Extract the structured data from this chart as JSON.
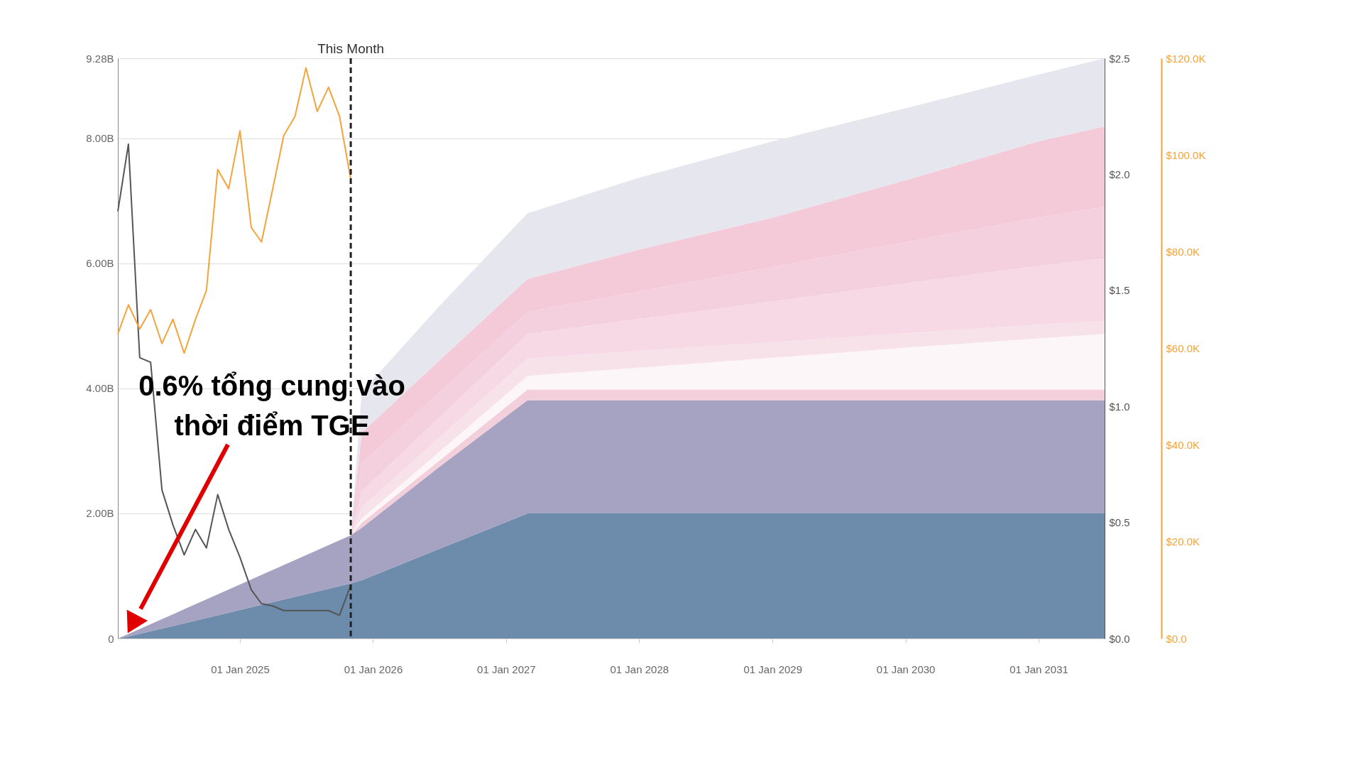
{
  "chart_data": {
    "type": "area",
    "stacked": true,
    "grid": "y",
    "legend": false,
    "marker": "none",
    "x": [
      "2024-02",
      "2024-03",
      "2025-11",
      "2025-12",
      "2026-07",
      "2027-03",
      "2028-01",
      "2029-01",
      "2030-01",
      "2031-01",
      "2031-07"
    ],
    "series": [
      {
        "color": "#6d8bab",
        "values": [
          0,
          0.03,
          0.88,
          0.93,
          1.43,
          2.0,
          2.0,
          2.0,
          2.0,
          2.0,
          2.0
        ]
      },
      {
        "color": "#a6a2c2",
        "values": [
          0,
          0.04,
          0.77,
          0.84,
          1.31,
          1.81,
          1.81,
          1.81,
          1.81,
          1.81,
          1.81
        ]
      },
      {
        "color": "#f3cfdc",
        "values": [
          0,
          0,
          0,
          0.08,
          0.1,
          0.17,
          0.17,
          0.17,
          0.17,
          0.17,
          0.17
        ]
      },
      {
        "color": "#fdf6f8",
        "values": [
          0,
          0,
          0,
          0.07,
          0.14,
          0.22,
          0.35,
          0.51,
          0.67,
          0.82,
          0.89
        ]
      },
      {
        "color": "#f8e2ea",
        "values": [
          0,
          0,
          0,
          0.18,
          0.23,
          0.28,
          0.27,
          0.25,
          0.23,
          0.22,
          0.21
        ]
      },
      {
        "color": "#f6d9e4",
        "values": [
          0,
          0,
          0,
          0.25,
          0.32,
          0.39,
          0.51,
          0.65,
          0.8,
          0.94,
          1.0
        ]
      },
      {
        "color": "#f4cfdd",
        "values": [
          0,
          0,
          0,
          0.45,
          0.4,
          0.35,
          0.44,
          0.55,
          0.66,
          0.77,
          0.82
        ]
      },
      {
        "color": "#f5cad8",
        "values": [
          0,
          0,
          0,
          0.49,
          0.51,
          0.53,
          0.67,
          0.79,
          0.99,
          1.22,
          1.29
        ]
      },
      {
        "color": "#e6e6ef",
        "values": [
          0,
          0,
          0,
          0.65,
          0.87,
          1.05,
          1.15,
          1.22,
          1.15,
          1.07,
          1.09
        ]
      },
      {
        "type": "line",
        "axis": "y2",
        "color": "#555555",
        "x": [
          "2024-02",
          "2024-03",
          "2024-04",
          "2024-05",
          "2024-06",
          "2024-07",
          "2024-08",
          "2024-09",
          "2024-10",
          "2024-11",
          "2024-12",
          "2025-01",
          "2025-02",
          "2025-03",
          "2025-04",
          "2025-05",
          "2025-06",
          "2025-07",
          "2025-08",
          "2025-09",
          "2025-10",
          "2025-11"
        ],
        "values": [
          1.84,
          2.13,
          1.21,
          1.19,
          0.64,
          0.49,
          0.36,
          0.47,
          0.39,
          0.62,
          0.47,
          0.35,
          0.21,
          0.15,
          0.14,
          0.12,
          0.12,
          0.12,
          0.12,
          0.12,
          0.1,
          0.23
        ]
      },
      {
        "type": "line",
        "axis": "y3",
        "color": "#f5a33a",
        "x": [
          "2024-02",
          "2024-03",
          "2024-04",
          "2024-05",
          "2024-06",
          "2024-07",
          "2024-08",
          "2024-09",
          "2024-10",
          "2024-11",
          "2024-12",
          "2025-01",
          "2025-02",
          "2025-03",
          "2025-04",
          "2025-05",
          "2025-06",
          "2025-07",
          "2025-08",
          "2025-09",
          "2025-10",
          "2025-11"
        ],
        "values": [
          63,
          69,
          64,
          68,
          61,
          66,
          59,
          66,
          72,
          97,
          93,
          105,
          85,
          82,
          93,
          104,
          108,
          118,
          109,
          114,
          108,
          95
        ]
      }
    ],
    "xlim": [
      "2024-02",
      "2031-07"
    ],
    "xticks": [
      {
        "value": "2025-01-01",
        "label": "01 Jan 2025"
      },
      {
        "value": "2026-01-01",
        "label": "01 Jan 2026"
      },
      {
        "value": "2027-01-01",
        "label": "01 Jan 2027"
      },
      {
        "value": "2028-01-01",
        "label": "01 Jan 2028"
      },
      {
        "value": "2029-01-01",
        "label": "01 Jan 2029"
      },
      {
        "value": "2030-01-01",
        "label": "01 Jan 2030"
      },
      {
        "value": "2031-01-01",
        "label": "01 Jan 2031"
      }
    ],
    "ylim": [
      0,
      9.28
    ],
    "yticks": [
      {
        "value": 0,
        "label": "0"
      },
      {
        "value": 2,
        "label": "2.00B"
      },
      {
        "value": 4,
        "label": "4.00B"
      },
      {
        "value": 6,
        "label": "6.00B"
      },
      {
        "value": 8,
        "label": "8.00B"
      },
      {
        "value": 9.28,
        "label": "9.28B"
      }
    ],
    "y2lim": [
      0,
      2.5
    ],
    "y2ticks": [
      {
        "value": 0,
        "label": "$0.0"
      },
      {
        "value": 0.5,
        "label": "$0.5"
      },
      {
        "value": 1,
        "label": "$1.0"
      },
      {
        "value": 1.5,
        "label": "$1.5"
      },
      {
        "value": 2,
        "label": "$2.0"
      },
      {
        "value": 2.5,
        "label": "$2.5"
      }
    ],
    "y3lim": [
      0,
      120
    ],
    "y3ticks": [
      {
        "value": 0,
        "label": "$0.0"
      },
      {
        "value": 20,
        "label": "$20.0K"
      },
      {
        "value": 40,
        "label": "$40.0K"
      },
      {
        "value": 60,
        "label": "$60.0K"
      },
      {
        "value": 80,
        "label": "$80.0K"
      },
      {
        "value": 100,
        "label": "$100.0K"
      },
      {
        "value": 120,
        "label": "$120.0K"
      }
    ],
    "ref_lines": [
      {
        "axis": "x",
        "value": "2025-11",
        "label": "This Month",
        "color": "#222222",
        "line_style": "dashed"
      }
    ],
    "annotations": [
      "0.6% tổng cung vào\nthời điểm TGE"
    ]
  }
}
